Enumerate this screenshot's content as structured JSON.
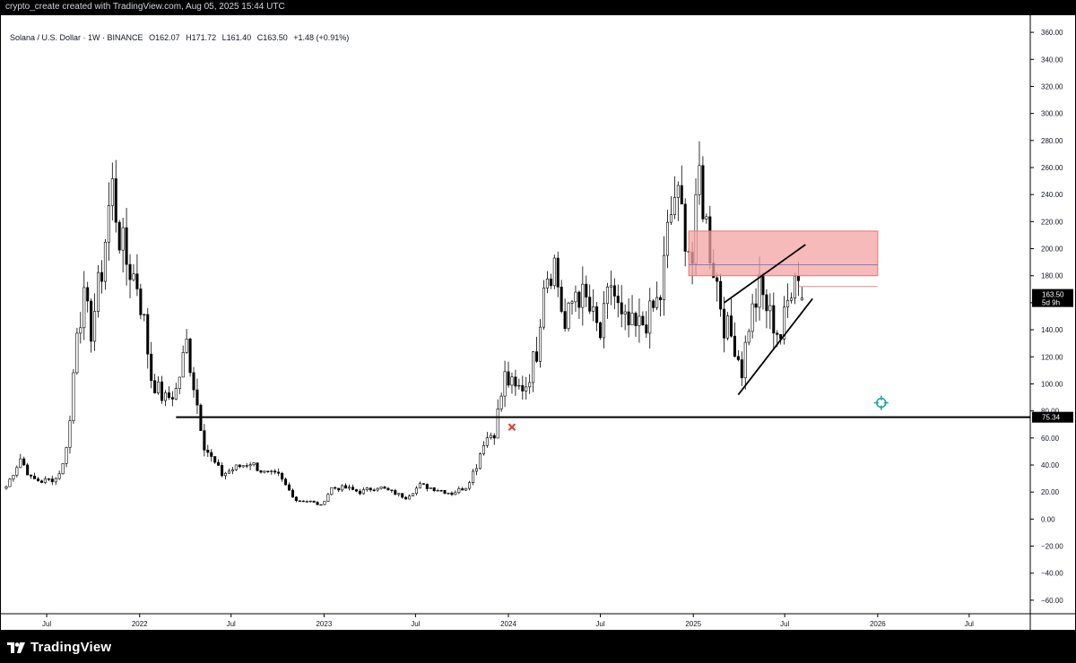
{
  "header": {
    "caption": "crypto_create created with TradingView.com, Aug 05, 2025 15:44 UTC"
  },
  "legend": {
    "symbol": "Solana / U.S. Dollar · 1W · BINANCE",
    "open": "O162.07",
    "high": "H171.72",
    "low": "L161.40",
    "close": "C163.50",
    "change": "+1.48 (+0.91%)"
  },
  "price_badge": {
    "price": "163.50",
    "countdown": "5d 9h"
  },
  "support_badge": {
    "price": "75.34"
  },
  "footer": {
    "brand": "TradingView"
  },
  "colors": {
    "candle": "#000000",
    "zone_fill": "#f4a3a3",
    "zone_line": "#e57373",
    "axis_line": "#5b6bd6",
    "target_icon": "#22a699",
    "marker": "#e53935"
  },
  "chart_data": {
    "type": "candlestick",
    "title": "Solana / U.S. Dollar · 1W · BINANCE",
    "xlabel": "",
    "ylabel": "",
    "ylim": [
      -70,
      370
    ],
    "y_ticks": [
      -60,
      -40,
      -20,
      0,
      20,
      40,
      60,
      80,
      100,
      120,
      140,
      160,
      180,
      200,
      220,
      240,
      260,
      280,
      300,
      320,
      340,
      360
    ],
    "y_tick_labels": [
      "−60.00",
      "−40.00",
      "−20.00",
      "0.00",
      "20.00",
      "40.00",
      "60.00",
      "80.00",
      "100.00",
      "120.00",
      "140.00",
      "160.00",
      "180.00",
      "200.00",
      "220.00",
      "240.00",
      "260.00",
      "280.00",
      "300.00",
      "320.00",
      "340.00",
      "360.00"
    ],
    "x_range": [
      "2021-04-12",
      "2026-10-30"
    ],
    "x_ticks": [
      {
        "date": "2021-07-01",
        "label": "Jul"
      },
      {
        "date": "2022-01-01",
        "label": "2022"
      },
      {
        "date": "2022-07-01",
        "label": "Jul"
      },
      {
        "date": "2023-01-01",
        "label": "2023"
      },
      {
        "date": "2023-07-01",
        "label": "Jul"
      },
      {
        "date": "2024-01-01",
        "label": "2024"
      },
      {
        "date": "2024-07-01",
        "label": "Jul"
      },
      {
        "date": "2025-01-01",
        "label": "2025"
      },
      {
        "date": "2025-07-01",
        "label": "Jul"
      },
      {
        "date": "2026-01-01",
        "label": "2026"
      },
      {
        "date": "2026-07-01",
        "label": "Jul"
      }
    ],
    "anchors": [
      [
        "2021-04-12",
        24
      ],
      [
        "2021-05-10",
        45
      ],
      [
        "2021-05-31",
        30
      ],
      [
        "2021-06-21",
        28
      ],
      [
        "2021-07-19",
        30
      ],
      [
        "2021-08-02",
        40
      ],
      [
        "2021-08-16",
        72
      ],
      [
        "2021-08-30",
        145
      ],
      [
        "2021-09-13",
        160
      ],
      [
        "2021-09-27",
        140
      ],
      [
        "2021-10-18",
        185
      ],
      [
        "2021-11-01",
        230
      ],
      [
        "2021-11-08",
        245
      ],
      [
        "2021-11-22",
        210
      ],
      [
        "2021-12-06",
        190
      ],
      [
        "2021-12-27",
        175
      ],
      [
        "2022-01-10",
        145
      ],
      [
        "2022-01-24",
        105
      ],
      [
        "2022-02-07",
        95
      ],
      [
        "2022-02-21",
        88
      ],
      [
        "2022-03-14",
        95
      ],
      [
        "2022-04-04",
        130
      ],
      [
        "2022-04-18",
        100
      ],
      [
        "2022-05-09",
        55
      ],
      [
        "2022-05-23",
        45
      ],
      [
        "2022-06-13",
        33
      ],
      [
        "2022-07-11",
        38
      ],
      [
        "2022-08-08",
        42
      ],
      [
        "2022-09-05",
        34
      ],
      [
        "2022-10-03",
        32
      ],
      [
        "2022-11-07",
        14
      ],
      [
        "2022-12-05",
        13
      ],
      [
        "2022-12-26",
        10
      ],
      [
        "2023-01-16",
        23
      ],
      [
        "2023-02-13",
        23
      ],
      [
        "2023-03-13",
        20
      ],
      [
        "2023-04-17",
        24
      ],
      [
        "2023-06-12",
        16
      ],
      [
        "2023-07-10",
        25
      ],
      [
        "2023-08-14",
        22
      ],
      [
        "2023-09-11",
        19
      ],
      [
        "2023-10-09",
        24
      ],
      [
        "2023-10-30",
        40
      ],
      [
        "2023-11-13",
        58
      ],
      [
        "2023-12-04",
        65
      ],
      [
        "2023-12-25",
        105
      ],
      [
        "2024-01-15",
        95
      ],
      [
        "2024-02-05",
        100
      ],
      [
        "2024-02-26",
        125
      ],
      [
        "2024-03-11",
        180
      ],
      [
        "2024-04-01",
        190
      ],
      [
        "2024-04-22",
        140
      ],
      [
        "2024-05-13",
        170
      ],
      [
        "2024-06-03",
        160
      ],
      [
        "2024-07-01",
        135
      ],
      [
        "2024-07-22",
        175
      ],
      [
        "2024-08-12",
        145
      ],
      [
        "2024-09-09",
        140
      ],
      [
        "2024-10-07",
        150
      ],
      [
        "2024-10-28",
        165
      ],
      [
        "2024-11-11",
        210
      ],
      [
        "2024-11-25",
        240
      ],
      [
        "2024-12-09",
        225
      ],
      [
        "2024-12-30",
        190
      ],
      [
        "2025-01-13",
        255
      ],
      [
        "2025-01-20",
        235
      ],
      [
        "2025-02-03",
        200
      ],
      [
        "2025-02-17",
        175
      ],
      [
        "2025-03-03",
        145
      ],
      [
        "2025-03-24",
        130
      ],
      [
        "2025-04-07",
        110
      ],
      [
        "2025-04-21",
        145
      ],
      [
        "2025-05-12",
        170
      ],
      [
        "2025-06-02",
        150
      ],
      [
        "2025-06-23",
        135
      ],
      [
        "2025-07-07",
        160
      ],
      [
        "2025-07-21",
        190
      ],
      [
        "2025-08-04",
        163.5
      ]
    ],
    "last_candle": {
      "date": "2025-08-04",
      "open": 162.07,
      "high": 171.72,
      "low": 161.4,
      "close": 163.5
    },
    "drawings": {
      "support_line": {
        "type": "horizontal",
        "from": "2022-03-14",
        "price": 75.34
      },
      "resistance_zone": {
        "from": "2024-12-23",
        "to": "2026-01-01",
        "top": 213,
        "bottom": 180
      },
      "zone_midline": {
        "from": "2024-12-23",
        "to": "2026-01-01",
        "price": 188
      },
      "zone_low_line": {
        "from": "2025-07-28",
        "to": "2026-01-01",
        "price": 172
      },
      "wedge_upper": {
        "from": [
          "2025-03-03",
          160
        ],
        "to": [
          "2025-08-11",
          203
        ]
      },
      "wedge_lower": {
        "from": [
          "2025-03-31",
          92
        ],
        "to": [
          "2025-08-25",
          163
        ]
      },
      "x_marker": {
        "date": "2024-01-08",
        "price": 68
      },
      "target_icon": {
        "date": "2026-01-08",
        "price": 86
      }
    }
  }
}
